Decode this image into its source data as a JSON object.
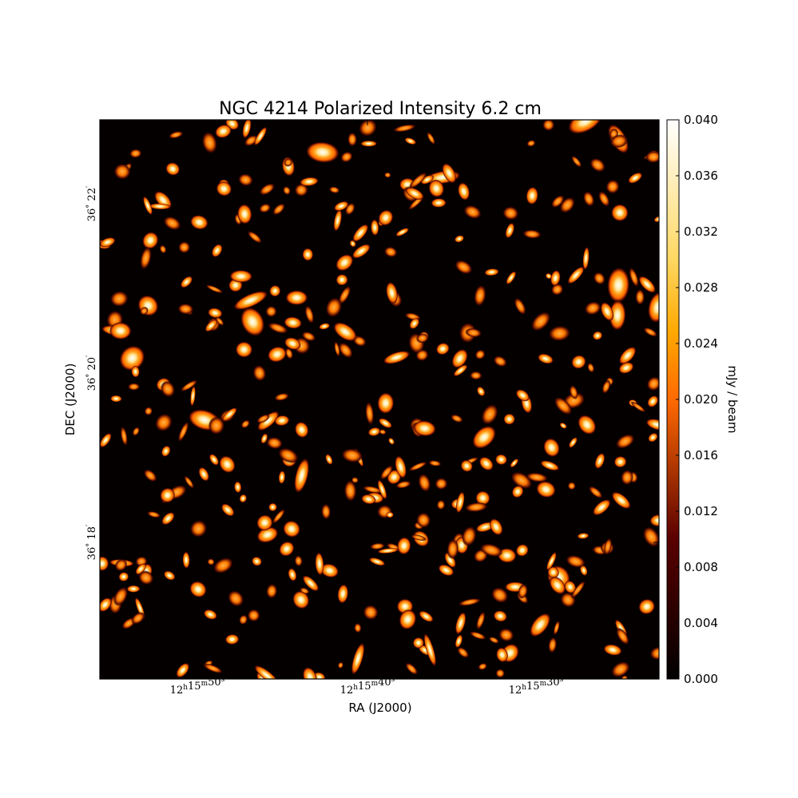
{
  "chart_data": {
    "type": "heatmap",
    "title": "NGC 4214 Polarized Intensity 6.2 cm",
    "xlabel": "RA (J2000)",
    "ylabel": "DEC (J2000)",
    "x_ticks": [
      {
        "h": "12",
        "m": "15",
        "s": "50",
        "text": "12h15m50s"
      },
      {
        "h": "12",
        "m": "15",
        "s": "40",
        "text": "12h15m40s"
      },
      {
        "h": "12",
        "m": "15",
        "s": "30",
        "text": "12h15m30s"
      }
    ],
    "y_ticks": [
      {
        "deg": "36",
        "min": "22",
        "text": "36°22′"
      },
      {
        "deg": "36",
        "min": "20",
        "text": "36°20′"
      },
      {
        "deg": "36",
        "min": "18",
        "text": "36°18′"
      }
    ],
    "colorbar": {
      "label": "mJy / beam",
      "range": [
        0.0,
        0.04
      ],
      "ticks": [
        "0.000",
        "0.004",
        "0.008",
        "0.012",
        "0.016",
        "0.020",
        "0.024",
        "0.028",
        "0.032",
        "0.036",
        "0.040"
      ],
      "colormap": "afmhot",
      "colors": [
        "#000000",
        "#7f0000",
        "#ff7f00",
        "#ffff7f",
        "#ffffff"
      ]
    },
    "grid": false
  }
}
